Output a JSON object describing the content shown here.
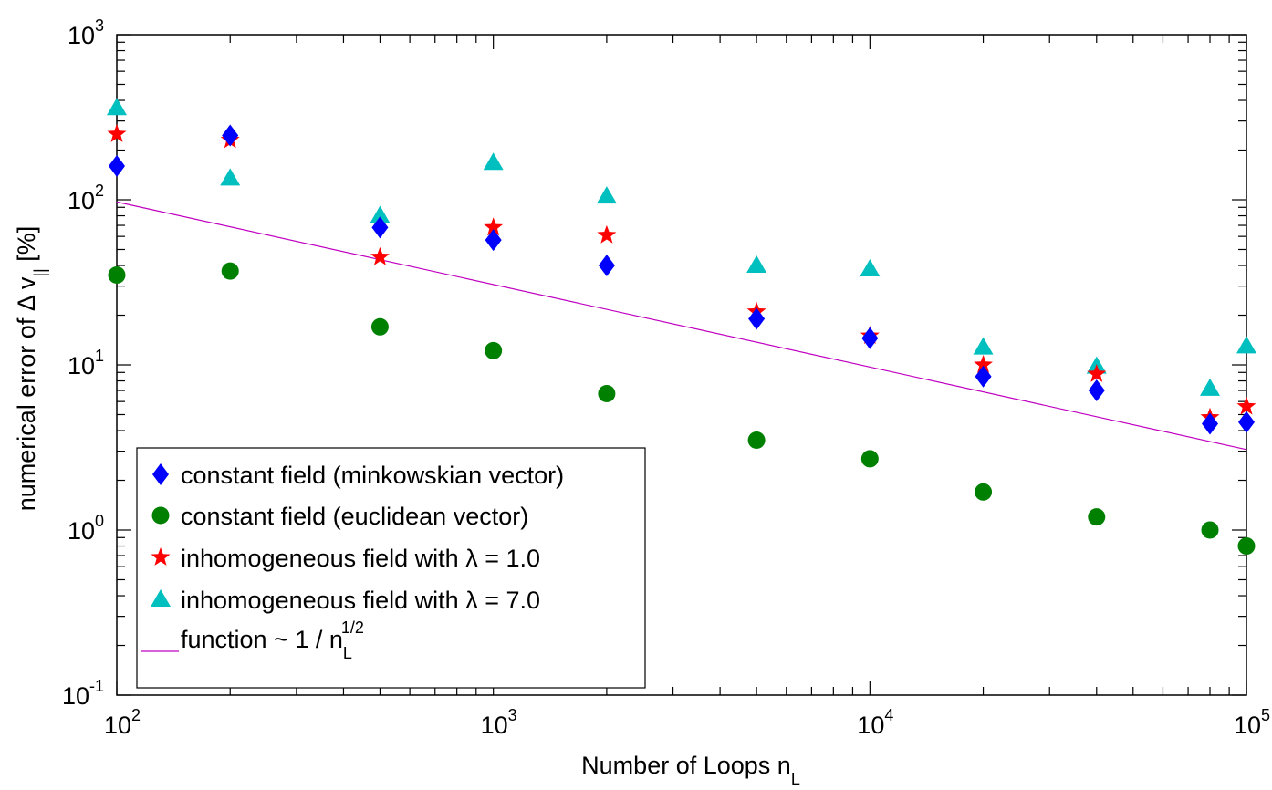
{
  "chart_data": {
    "type": "scatter",
    "xscale": "log",
    "yscale": "log",
    "xlim": [
      100,
      100000
    ],
    "ylim": [
      0.1,
      1000
    ],
    "xlabel": "Number of Loops n_L",
    "ylabel": "numerical error of Δ v_|| [%]",
    "x_ticks": [
      {
        "base": "10",
        "exp": "2",
        "value": 100
      },
      {
        "base": "10",
        "exp": "3",
        "value": 1000
      },
      {
        "base": "10",
        "exp": "4",
        "value": 10000
      },
      {
        "base": "10",
        "exp": "5",
        "value": 100000
      }
    ],
    "y_ticks": [
      {
        "base": "10",
        "exp": "-1",
        "value": 0.1
      },
      {
        "base": "10",
        "exp": "0",
        "value": 1
      },
      {
        "base": "10",
        "exp": "1",
        "value": 10
      },
      {
        "base": "10",
        "exp": "2",
        "value": 100
      },
      {
        "base": "10",
        "exp": "3",
        "value": 1000
      }
    ],
    "x": [
      100,
      200,
      500,
      1000,
      2000,
      5000,
      10000,
      20000,
      40000,
      80000,
      100000
    ],
    "series": [
      {
        "name": "constant field (minkowskian vector)",
        "marker": "diamond",
        "color": "#0000ff",
        "values": [
          160,
          245,
          68,
          57,
          40,
          19,
          14.5,
          8.5,
          7,
          4.4,
          4.5
        ]
      },
      {
        "name": "constant field (euclidean vector)",
        "marker": "circle",
        "color": "#008000",
        "values": [
          35,
          37,
          17,
          12.2,
          6.7,
          3.5,
          2.7,
          1.7,
          1.2,
          1.0,
          0.8
        ]
      },
      {
        "name": "inhomogeneous field with λ = 1.0",
        "marker": "star",
        "color": "#ff0000",
        "values": [
          250,
          230,
          45,
          68,
          61,
          21,
          15,
          10,
          8.8,
          4.8,
          5.6
        ]
      },
      {
        "name": "inhomogeneous field with λ = 7.0",
        "marker": "triangle",
        "color": "#00bfbf",
        "values": [
          360,
          135,
          80,
          168,
          105,
          40,
          38,
          12.8,
          9.8,
          7.2,
          13
        ]
      }
    ],
    "reference_line": {
      "name": "function ~ 1 / n_L^(1/2)",
      "color": "#c000c0",
      "x": [
        100,
        100000
      ],
      "values": [
        97,
        3.07
      ]
    },
    "legend": {
      "position": "bottom-left",
      "entries": [
        {
          "text": "constant field (minkowskian vector)"
        },
        {
          "text": "constant field (euclidean vector)"
        },
        {
          "text": "inhomogeneous field with λ = 1.0"
        },
        {
          "text": "inhomogeneous field with λ = 7.0"
        },
        {
          "text": "function ~ 1 / n",
          "sub": "L",
          "sup": "1/2"
        }
      ]
    }
  }
}
